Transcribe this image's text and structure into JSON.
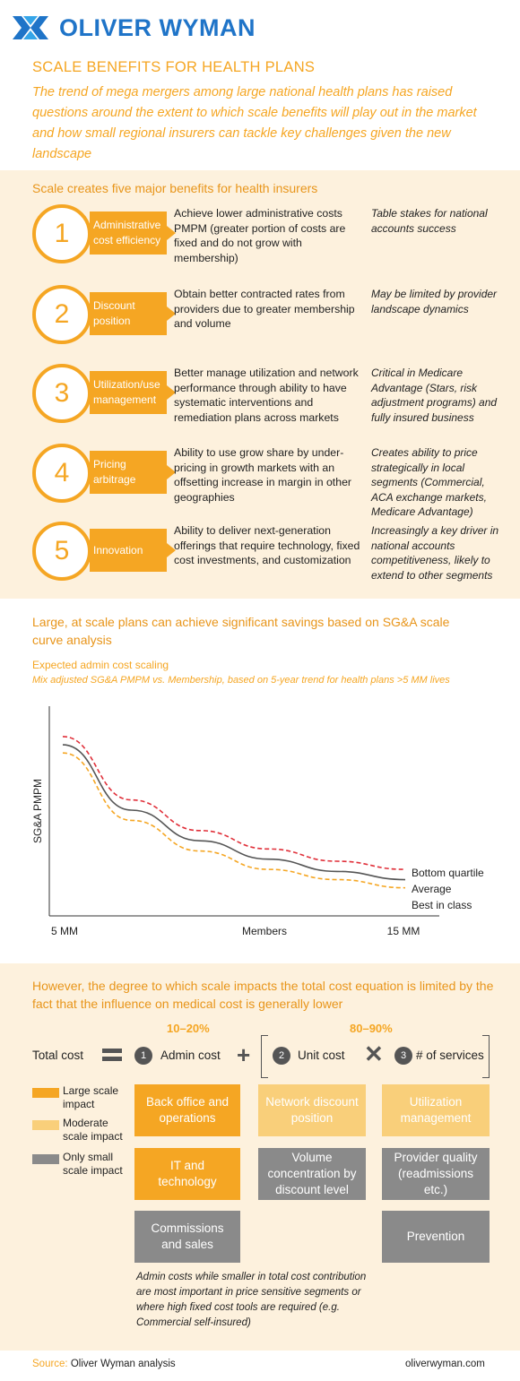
{
  "header": {
    "brand": "OLIVER WYMAN",
    "title": "SCALE BENEFITS FOR HEALTH PLANS",
    "intro": "The trend of mega mergers among large national health plans has raised questions around the extent to which scale benefits will play out in the market and how small regional insurers can tackle key challenges given the new landscape"
  },
  "benefits": {
    "heading": "Scale creates five major benefits for health insurers",
    "items": [
      {
        "num": "1",
        "tag": "Administrative cost efficiency",
        "desc": "Achieve lower administrative costs PMPM (greater portion of costs are fixed and do not grow with membership)",
        "note": "Table stakes for national accounts success"
      },
      {
        "num": "2",
        "tag": "Discount position",
        "desc": "Obtain better contracted rates from providers due to greater membership and volume",
        "note": "May be limited by provider landscape dynamics"
      },
      {
        "num": "3",
        "tag": "Utilization/use management",
        "desc": "Better manage utilization and network performance through ability to have systematic interventions and remediation plans across markets",
        "note": "Critical in Medicare Advantage (Stars, risk adjustment programs) and fully insured business"
      },
      {
        "num": "4",
        "tag": "Pricing arbitrage",
        "desc": "Ability to use grow share by under-pricing in growth markets with an offsetting increase in margin in other geographies",
        "note": "Creates ability to price strategically in local segments (Commercial, ACA exchange markets, Medicare Advantage)"
      },
      {
        "num": "5",
        "tag": "Innovation",
        "desc": "Ability to deliver next-generation offerings that require technology, fixed cost investments, and customization",
        "note": "Increasingly a key driver in national accounts competitiveness, likely to extend to other segments"
      }
    ]
  },
  "curve": {
    "heading": "Large, at scale plans can achieve significant savings based on SG&A scale curve analysis",
    "chart_title": "Expected admin cost scaling",
    "chart_subtitle": "Mix adjusted SG&A PMPM vs. Membership, based on 5-year trend for health plans >5 MM lives"
  },
  "chart_data": {
    "type": "line",
    "xlabel": "Members",
    "ylabel": "SG&A PMPM",
    "x_ticks": [
      "5 MM",
      "15 MM"
    ],
    "y_ticks": [],
    "grid": false,
    "series": [
      {
        "name": "Bottom quartile",
        "color": "#e0303a",
        "dash": true,
        "x": [
          5,
          7,
          9,
          11,
          13,
          15
        ],
        "y": [
          0.86,
          0.55,
          0.4,
          0.31,
          0.25,
          0.21
        ]
      },
      {
        "name": "Average",
        "color": "#555555",
        "dash": false,
        "x": [
          5,
          7,
          9,
          11,
          13,
          15
        ],
        "y": [
          0.82,
          0.5,
          0.35,
          0.26,
          0.2,
          0.16
        ]
      },
      {
        "name": "Best in class",
        "color": "#f5a623",
        "dash": true,
        "x": [
          5,
          7,
          9,
          11,
          13,
          15
        ],
        "y": [
          0.78,
          0.45,
          0.3,
          0.21,
          0.16,
          0.12
        ]
      }
    ]
  },
  "equation": {
    "heading": "However, the degree to which scale impacts the total cost equation is limited by the fact that the influence on medical cost is generally lower",
    "pct_admin": "10–20%",
    "pct_medical": "80–90%",
    "total_cost": "Total cost",
    "admin_num": "1",
    "admin_label": "Admin cost",
    "unit_num": "2",
    "unit_label": "Unit cost",
    "services_num": "3",
    "services_label": "# of services",
    "legend": [
      {
        "label": "Large scale impact",
        "color": "#f5a623"
      },
      {
        "label": "Moderate scale impact",
        "color": "#f9cf7a"
      },
      {
        "label": "Only small scale impact",
        "color": "#8a8a8a"
      }
    ],
    "boxes": {
      "back_office": "Back office and operations",
      "it": "IT and technology",
      "commissions": "Commissions and sales",
      "network": "Network discount position",
      "volume": "Volume concentration by discount level",
      "utilization": "Utilization management",
      "provider_quality": "Provider quality (readmissions etc.)",
      "prevention": "Prevention"
    },
    "footnote": "Admin costs while smaller in total cost contribution are most important in price sensitive segments or where high fixed cost tools are required (e.g. Commercial self-insured)"
  },
  "footer": {
    "source_label": "Source:",
    "source_text": "Oliver Wyman analysis",
    "site": "oliverwyman.com"
  }
}
